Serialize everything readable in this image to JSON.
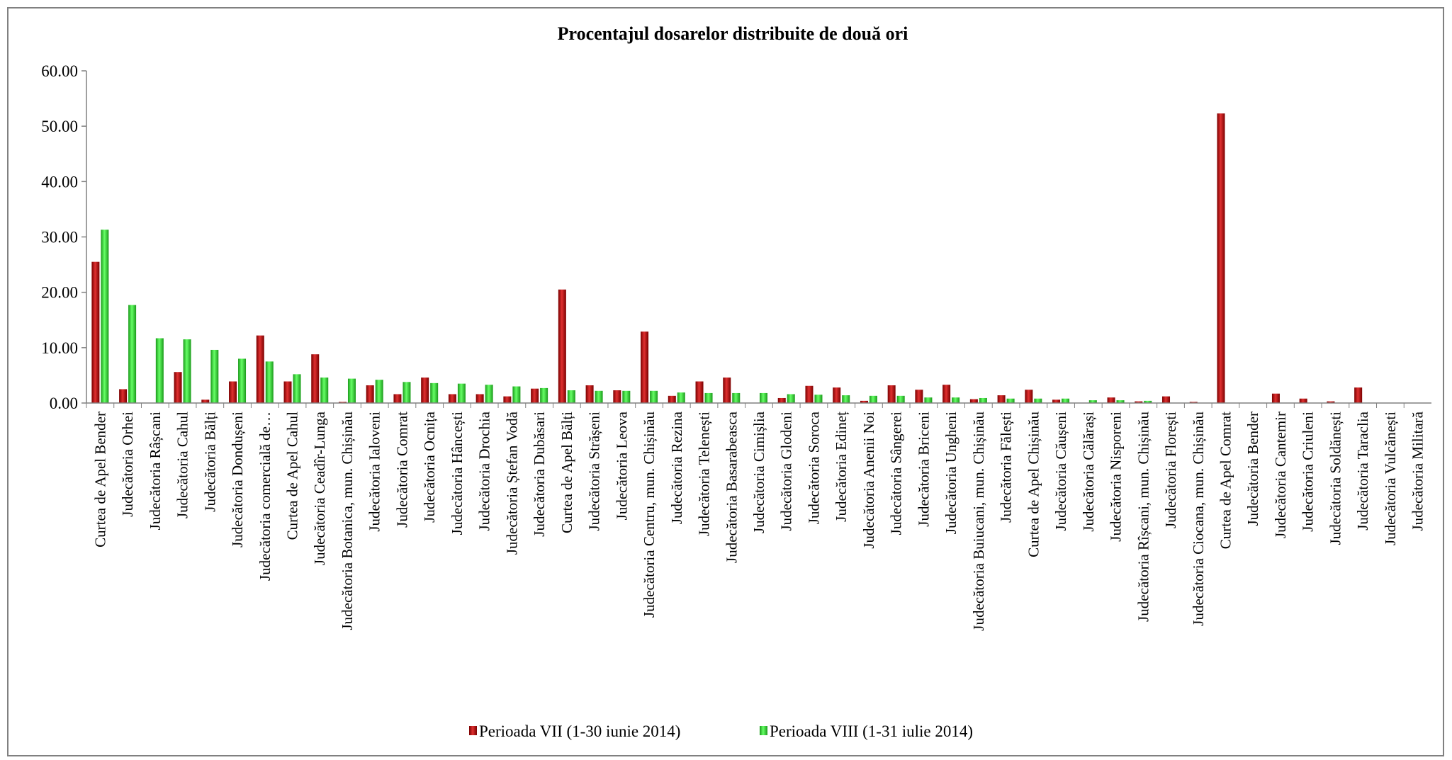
{
  "chart_data": {
    "type": "bar",
    "title": "Procentajul dosarelor distribuite de două ori",
    "xlabel": "",
    "ylabel": "",
    "ylim": [
      0,
      60
    ],
    "yticks": [
      "0.00",
      "10.00",
      "20.00",
      "30.00",
      "40.00",
      "50.00",
      "60.00"
    ],
    "grid": false,
    "legend_position": "bottom",
    "categories": [
      "Curtea de Apel Bender",
      "Judecătoria Orhei",
      "Judecătoria Râșcani",
      "Judecătoria Cahul",
      "Judecătoria Bălți",
      "Judecătoria Dondușeni",
      "Judecătoria comercială de…",
      "Curtea de Apel Cahul",
      "Judecătoria Ceadîr-Lunga",
      "Judecătoria Botanica, mun. Chișinău",
      "Judecătoria Ialoveni",
      "Judecătoria Comrat",
      "Judecătoria Ocnița",
      "Judecătoria Hâncești",
      "Judecătoria Drochia",
      "Judecătoria Ștefan Vodă",
      "Judecătoria Dubăsari",
      "Curtea de Apel Bălți",
      "Judecătoria Strășeni",
      "Judecătoria Leova",
      "Judecătoria Centru, mun. Chișinău",
      "Judecătoria Rezina",
      "Judecătoria Telenești",
      "Judecătoria Basarabeasca",
      "Judecătoria Cimișlia",
      "Judecătoria Glodeni",
      "Judecătoria Soroca",
      "Judecătoria Edineț",
      "Judecătoria Anenii Noi",
      "Judecătoria Sângerei",
      "Judecătoria Briceni",
      "Judecătoria Ungheni",
      "Judecătoria Buiucani, mun. Chișinău",
      "Judecătoria Fălești",
      "Curtea de Apel Chișinău",
      "Judecătoria Căușeni",
      "Judecătoria Călărași",
      "Judecătoria Nisporeni",
      "Judecătoria Rîșcani, mun. Chișinău",
      "Judecătoria Florești",
      "Judecătoria Ciocana, mun. Chișinău",
      "Curtea de Apel Comrat",
      "Judecătoria Bender",
      "Judecătoria Cantemir",
      "Judecătoria Criuleni",
      "Judecătoria Soldănești",
      "Judecătoria Taraclia",
      "Judecătoria Vulcănești",
      "Judecătoria Militară"
    ],
    "series": [
      {
        "name": "Perioada VII (1-30 iunie 2014)",
        "color": "#C00000",
        "values": [
          25.5,
          2.5,
          0,
          5.6,
          0.6,
          3.9,
          12.2,
          3.9,
          8.8,
          0.2,
          3.2,
          1.6,
          4.6,
          1.6,
          1.6,
          1.2,
          2.6,
          20.5,
          3.2,
          2.3,
          12.9,
          1.3,
          3.9,
          4.6,
          0,
          0.9,
          3.1,
          2.8,
          0.4,
          3.2,
          2.4,
          3.3,
          0.7,
          1.4,
          2.4,
          0.6,
          0,
          1.0,
          0.3,
          1.2,
          0.2,
          52.3,
          0,
          1.7,
          0.8,
          0.3,
          2.8,
          0,
          0
        ]
      },
      {
        "name": "Perioada VIII (1-31 iulie 2014)",
        "color": "#33DD33",
        "values": [
          31.3,
          17.7,
          11.7,
          11.5,
          9.6,
          8.0,
          7.5,
          5.2,
          4.6,
          4.4,
          4.2,
          3.8,
          3.6,
          3.5,
          3.3,
          3.0,
          2.7,
          2.3,
          2.2,
          2.2,
          2.2,
          1.9,
          1.8,
          1.8,
          1.8,
          1.6,
          1.5,
          1.4,
          1.3,
          1.3,
          1.0,
          1.0,
          0.9,
          0.8,
          0.8,
          0.8,
          0.5,
          0.5,
          0.4,
          0,
          0,
          0,
          0,
          0,
          0,
          0,
          0,
          0,
          0
        ]
      }
    ]
  }
}
